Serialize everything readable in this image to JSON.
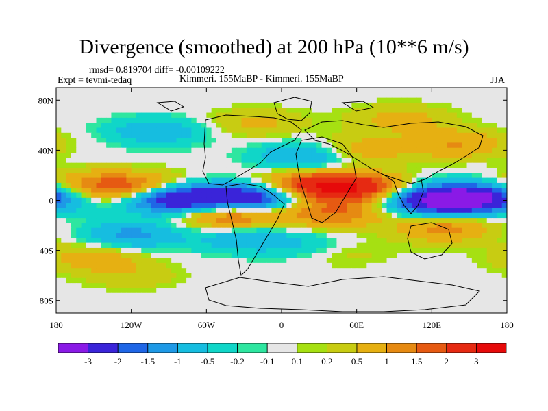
{
  "title": "Divergence (smoothed) at 200 hPa (10**6 m/s)",
  "stats": "rmsd= 0.819704 diff= -0.00109222",
  "expt": "Expt = tevmi-tedaq",
  "comparison": "Kimmeri. 155MaBP - Kimmeri. 155MaBP",
  "season": "JJA",
  "lat_labels": [
    "80N",
    "40N",
    "0",
    "40S",
    "80S"
  ],
  "lon_labels": [
    "180",
    "120W",
    "60W",
    "0",
    "60E",
    "120E",
    "180"
  ],
  "colorbar": {
    "labels": [
      "-3",
      "-2",
      "-1.5",
      "-1",
      "-0.5",
      "-0.2",
      "-0.1",
      "0.1",
      "0.2",
      "0.5",
      "1",
      "1.5",
      "2",
      "3"
    ],
    "colors": [
      "#8a1ae6",
      "#3a24d9",
      "#1f66e6",
      "#1e99e6",
      "#16bde0",
      "#10d6c8",
      "#2ee6a0",
      "#e6e6e6",
      "#a6e012",
      "#c8cc12",
      "#e6b012",
      "#e68a12",
      "#e65a12",
      "#e62a12",
      "#e60a0a"
    ]
  },
  "chart_data": {
    "type": "heatmap",
    "title": "Divergence (smoothed) at 200 hPa (10**6 m/s)",
    "x_range": [
      -180,
      180
    ],
    "y_range": [
      -90,
      90
    ],
    "levels": [
      -3,
      -2,
      -1.5,
      -1,
      -0.5,
      -0.2,
      -0.1,
      0.1,
      0.2,
      0.5,
      1,
      1.5,
      2,
      3
    ],
    "features": [
      {
        "lon": 60,
        "lat": 10,
        "value": 2.5
      },
      {
        "lon": 20,
        "lat": 12,
        "value": 2.0
      },
      {
        "lon": -110,
        "lat": 10,
        "value": 1.6
      },
      {
        "lon": -150,
        "lat": 12,
        "value": 1.2
      },
      {
        "lon": -85,
        "lat": 2,
        "value": -3.2
      },
      {
        "lon": -25,
        "lat": 2,
        "value": -2.8
      },
      {
        "lon": 120,
        "lat": 0,
        "value": -2.6
      },
      {
        "lon": 155,
        "lat": 2,
        "value": -3.0
      },
      {
        "lon": -40,
        "lat": -12,
        "value": 1.8
      },
      {
        "lon": 40,
        "lat": -10,
        "value": 1.5
      },
      {
        "lon": 130,
        "lat": -22,
        "value": 1.2
      },
      {
        "lon": -120,
        "lat": -28,
        "value": -1.2
      },
      {
        "lon": -30,
        "lat": -30,
        "value": -0.9
      },
      {
        "lon": 30,
        "lat": -38,
        "value": -1.1
      },
      {
        "lon": 40,
        "lat": -40,
        "value": 1.0
      },
      {
        "lon": -150,
        "lat": -45,
        "value": 0.8
      },
      {
        "lon": -100,
        "lat": 55,
        "value": -0.9
      },
      {
        "lon": 20,
        "lat": 35,
        "value": -1.2
      },
      {
        "lon": 60,
        "lat": 40,
        "value": 0.9
      },
      {
        "lon": 140,
        "lat": 45,
        "value": 1.0
      },
      {
        "lon": -20,
        "lat": 62,
        "value": 0.6
      },
      {
        "lon": 95,
        "lat": 65,
        "value": 0.7
      },
      {
        "lon": -120,
        "lat": -60,
        "value": 0.4
      }
    ]
  }
}
